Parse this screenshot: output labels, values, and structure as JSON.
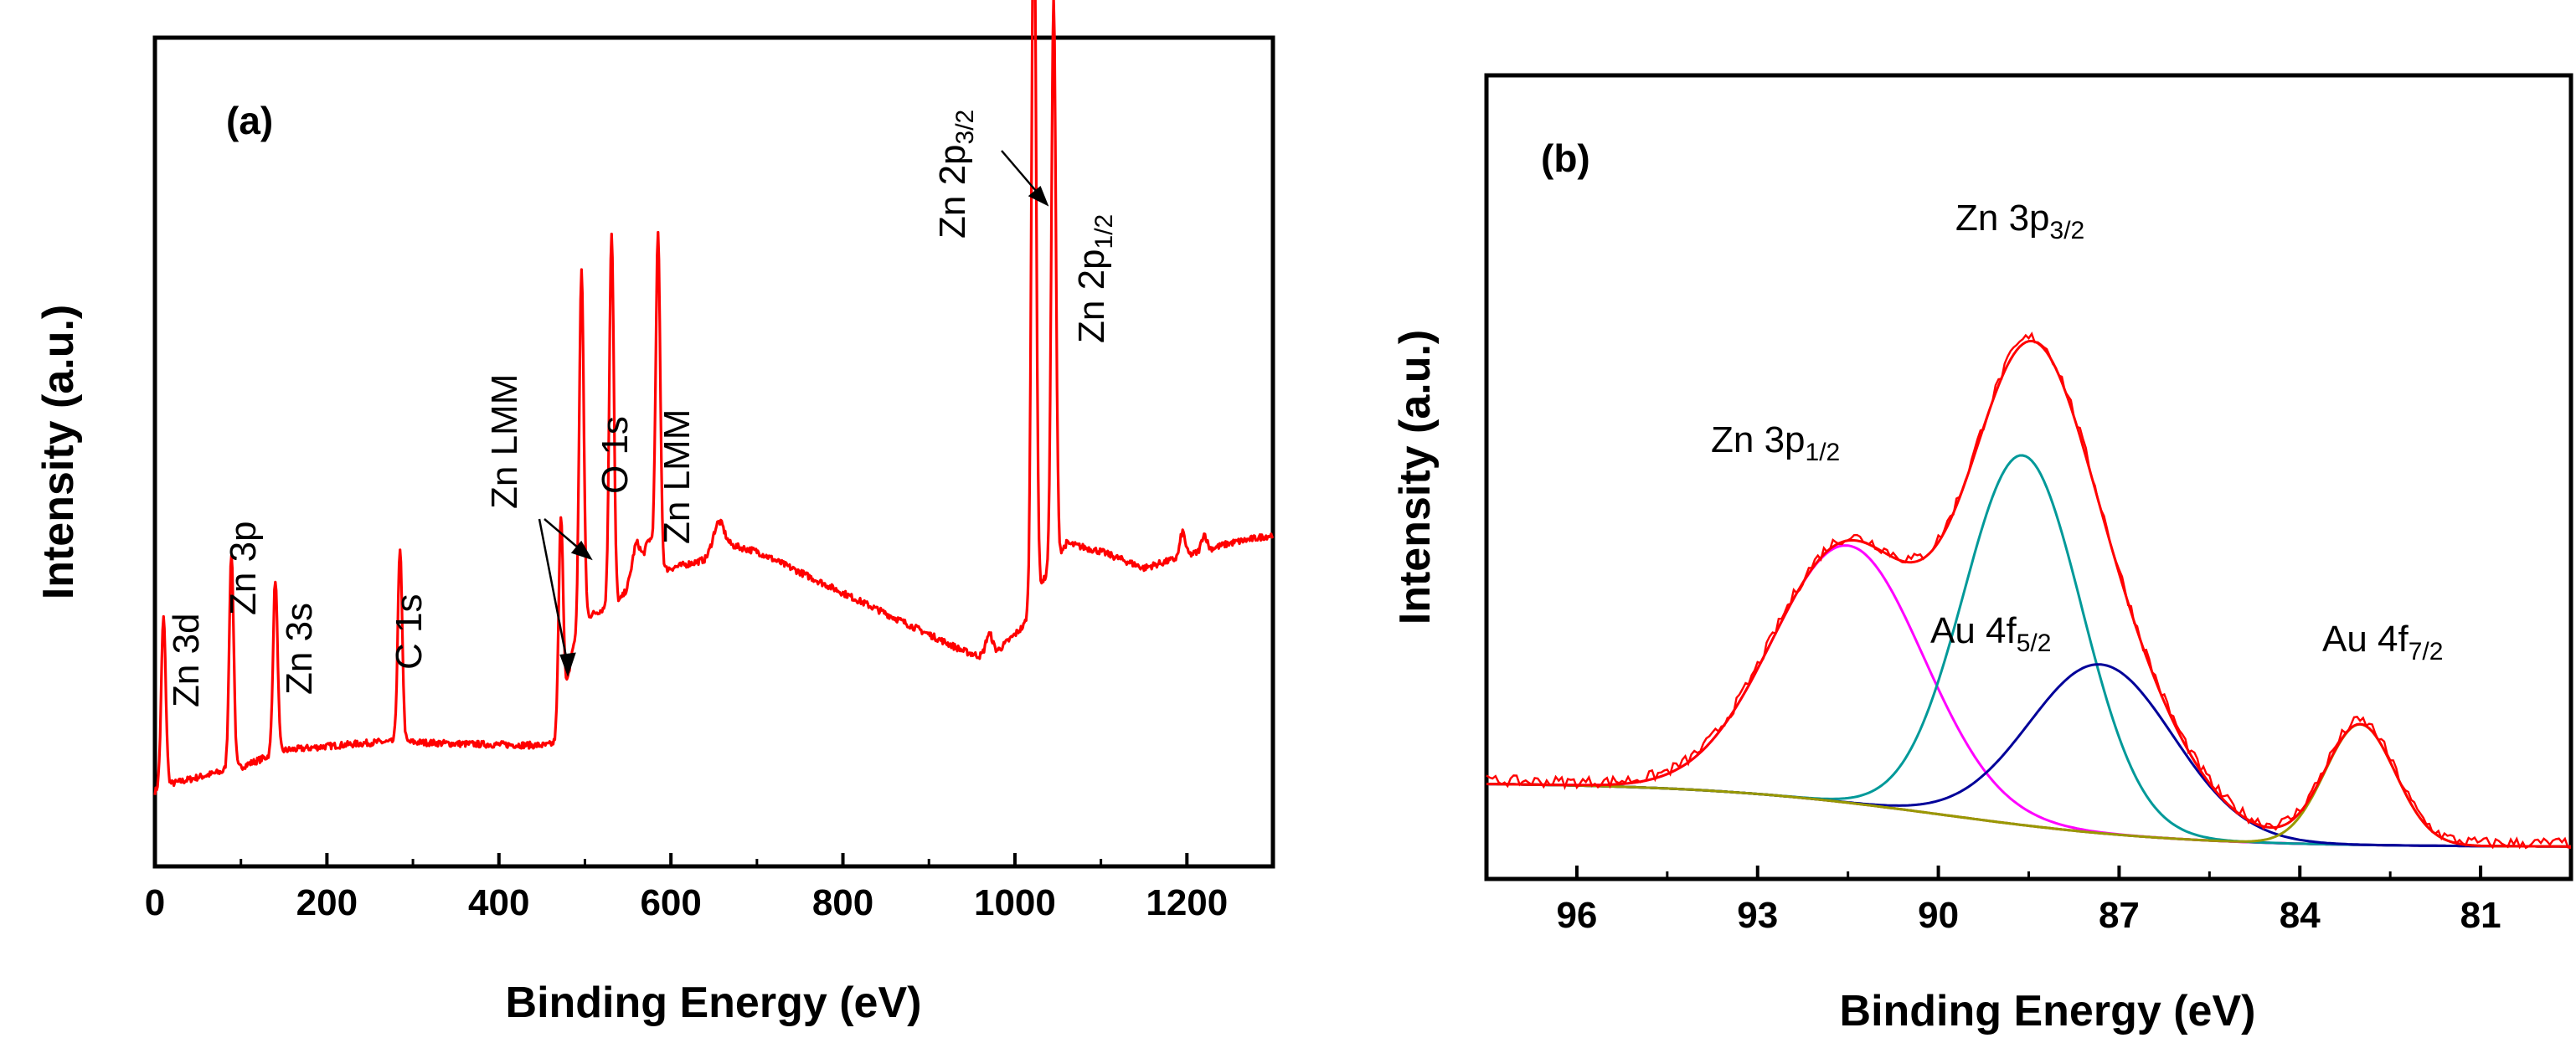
{
  "chart_data": [
    {
      "panel_label": "(a)",
      "type": "line",
      "xlabel": "Binding Energy (eV)",
      "ylabel": "Intensity (a.u.)",
      "xlim": [
        0,
        1300
      ],
      "ylim": [
        0,
        1
      ],
      "x_ticks": [
        "0",
        "200",
        "400",
        "600",
        "800",
        "1000",
        "1200"
      ],
      "y_ticks": [],
      "grid": false,
      "colors": {
        "spectrum": "#ff0000",
        "axes": "#000000"
      },
      "series": [
        {
          "values_note": "",
          "baseline": [
            [
              0,
              0.09
            ],
            [
              10,
              0.1
            ],
            [
              20,
              0.1
            ],
            [
              60,
              0.11
            ],
            [
              80,
              0.115
            ],
            [
              100,
              0.12
            ],
            [
              150,
              0.14
            ],
            [
              200,
              0.145
            ],
            [
              260,
              0.15
            ],
            [
              300,
              0.15
            ],
            [
              350,
              0.148
            ],
            [
              400,
              0.147
            ],
            [
              455,
              0.146
            ],
            [
              470,
              0.15
            ],
            [
              485,
              0.26
            ],
            [
              500,
              0.3
            ],
            [
              540,
              0.32
            ],
            [
              560,
              0.35
            ],
            [
              600,
              0.36
            ],
            [
              640,
              0.37
            ],
            [
              660,
              0.39
            ],
            [
              700,
              0.38
            ],
            [
              760,
              0.35
            ],
            [
              820,
              0.32
            ],
            [
              880,
              0.29
            ],
            [
              940,
              0.26
            ],
            [
              970,
              0.25
            ],
            [
              990,
              0.27
            ],
            [
              1010,
              0.29
            ],
            [
              1030,
              0.34
            ],
            [
              1060,
              0.39
            ],
            [
              1100,
              0.38
            ],
            [
              1150,
              0.36
            ],
            [
              1200,
              0.375
            ],
            [
              1250,
              0.39
            ],
            [
              1300,
              0.4
            ]
          ],
          "peaks": [
            {
              "x": 10,
              "height": 0.2,
              "label": "Zn 3d"
            },
            {
              "x": 89,
              "height": 0.26,
              "label": "Zn 3p"
            },
            {
              "x": 140,
              "height": 0.21,
              "label": "Zn 3s"
            },
            {
              "x": 285,
              "height": 0.23,
              "label": "C 1s"
            },
            {
              "x": 472,
              "height": 0.26,
              "label": "Zn LMM"
            },
            {
              "x": 496,
              "height": 0.43,
              "label": "Zn LMM"
            },
            {
              "x": 531,
              "height": 0.45,
              "label": "O 1s"
            },
            {
              "x": 585,
              "height": 0.4,
              "label": "Zn LMM"
            },
            {
              "x": 1022,
              "height": 0.9,
              "label": "Zn 2p3/2"
            },
            {
              "x": 1045,
              "height": 0.68,
              "label": "Zn 2p1/2"
            }
          ]
        }
      ],
      "annotations": [
        {
          "main": "Zn 3d",
          "sub": ""
        },
        {
          "main": "Zn 3p",
          "sub": ""
        },
        {
          "main": "Zn 3s",
          "sub": ""
        },
        {
          "main": "C 1s",
          "sub": ""
        },
        {
          "main": "Zn LMM",
          "sub": ""
        },
        {
          "main": "O 1s",
          "sub": ""
        },
        {
          "main": "Zn LMM",
          "sub": ""
        },
        {
          "main": "Zn 2p",
          "sub": "3/2"
        },
        {
          "main": "Zn 2p",
          "sub": "1/2"
        }
      ]
    },
    {
      "panel_label": "(b)",
      "type": "line",
      "xlabel": "Binding Energy (eV)",
      "ylabel": "Intensity (a.u.)",
      "xlim": [
        97.5,
        79.5
      ],
      "ylim": [
        0,
        1
      ],
      "x_ticks": [
        "96",
        "93",
        "90",
        "87",
        "84",
        "81"
      ],
      "y_ticks": [],
      "grid": false,
      "colors": {
        "raw": "#ff0000",
        "fit_envelope": "#ff0000",
        "zn3p12": "#ff00ff",
        "zn3p32": "#009999",
        "au4f52": "#000099",
        "au4f72": "#999900",
        "background": "#990000"
      },
      "background_curve": {
        "left": 0.12,
        "right": 0.04
      },
      "series": [
        {
          "component": "Zn 3p1/2",
          "center": 91.5,
          "sigma": 1.25,
          "height": 0.32
        },
        {
          "component": "Zn 3p3/2",
          "center": 88.6,
          "sigma": 0.98,
          "height": 0.46
        },
        {
          "component": "Au 4f5/2",
          "center": 87.3,
          "sigma": 1.2,
          "height": 0.21
        },
        {
          "component": "Au 4f7/2",
          "center": 83.0,
          "sigma": 0.58,
          "height": 0.15
        }
      ],
      "annotations": [
        {
          "main": "Zn 3p",
          "sub": "3/2"
        },
        {
          "main": "Zn 3p",
          "sub": "1/2"
        },
        {
          "main": "Au 4f",
          "sub": "5/2"
        },
        {
          "main": "Au 4f",
          "sub": "7/2"
        }
      ]
    }
  ]
}
